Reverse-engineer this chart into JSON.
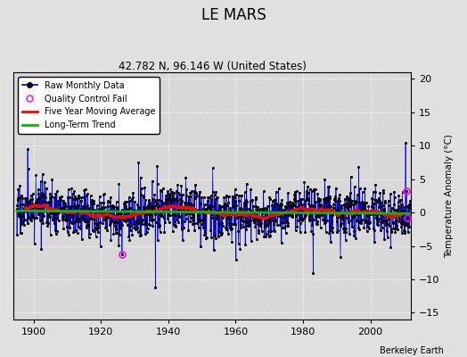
{
  "title": "LE MARS",
  "subtitle": "42.782 N, 96.146 W (United States)",
  "ylabel": "Temperature Anomaly (°C)",
  "credit": "Berkeley Earth",
  "start_year": 1895,
  "end_year": 2011,
  "ylim": [
    -16,
    21
  ],
  "yticks": [
    -15,
    -10,
    -5,
    0,
    5,
    10,
    15,
    20
  ],
  "xticks": [
    1900,
    1920,
    1940,
    1960,
    1980,
    2000
  ],
  "bg_color": "#e0e0e0",
  "plot_bg_color": "#d8d8d8",
  "grid_color": "#ffffff",
  "raw_line_color": "#0000cc",
  "raw_marker_color": "#000000",
  "moving_avg_color": "#ff0000",
  "trend_color": "#00bb00",
  "qc_fail_color": "#ff00ff",
  "seed": 17
}
